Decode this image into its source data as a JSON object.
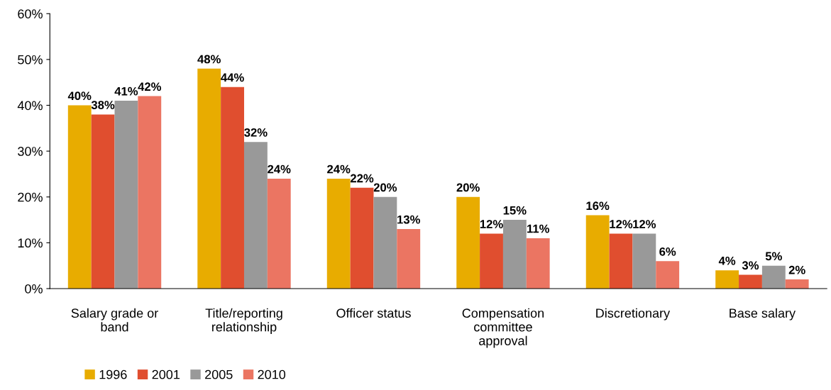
{
  "chart_data": {
    "type": "bar",
    "categories": [
      "Salary grade or\nband",
      "Title/reporting\nrelationship",
      "Officer status",
      "Compensation\ncommittee\napproval",
      "Discretionary",
      "Base salary"
    ],
    "series": [
      {
        "name": "1996",
        "color": "#e8ac00",
        "values": [
          40,
          48,
          24,
          20,
          16,
          4
        ],
        "value_labels": [
          "40%",
          "48%",
          "24%",
          "20%",
          "16%",
          "4%"
        ]
      },
      {
        "name": "2001",
        "color": "#e04e2f",
        "values": [
          38,
          44,
          22,
          12,
          12,
          3
        ],
        "value_labels": [
          "38%",
          "44%",
          "22%",
          "12%",
          "12%",
          "3%"
        ]
      },
      {
        "name": "2005",
        "color": "#999999",
        "values": [
          41,
          32,
          20,
          15,
          12,
          5
        ],
        "value_labels": [
          "41%",
          "32%",
          "20%",
          "15%",
          "12%",
          "5%"
        ]
      },
      {
        "name": "2010",
        "color": "#eb7562",
        "values": [
          42,
          24,
          13,
          11,
          6,
          2
        ],
        "value_labels": [
          "42%",
          "24%",
          "13%",
          "11%",
          "6%",
          "2%"
        ]
      }
    ],
    "ylim": [
      0,
      60
    ],
    "yticks": [
      {
        "value": 0,
        "label": "0%"
      },
      {
        "value": 10,
        "label": "10%"
      },
      {
        "value": 20,
        "label": "20%"
      },
      {
        "value": 30,
        "label": "30%"
      },
      {
        "value": 40,
        "label": "40%"
      },
      {
        "value": 50,
        "label": "50%"
      },
      {
        "value": 60,
        "label": "60%"
      }
    ],
    "grid": false,
    "legend": "bottom left"
  }
}
